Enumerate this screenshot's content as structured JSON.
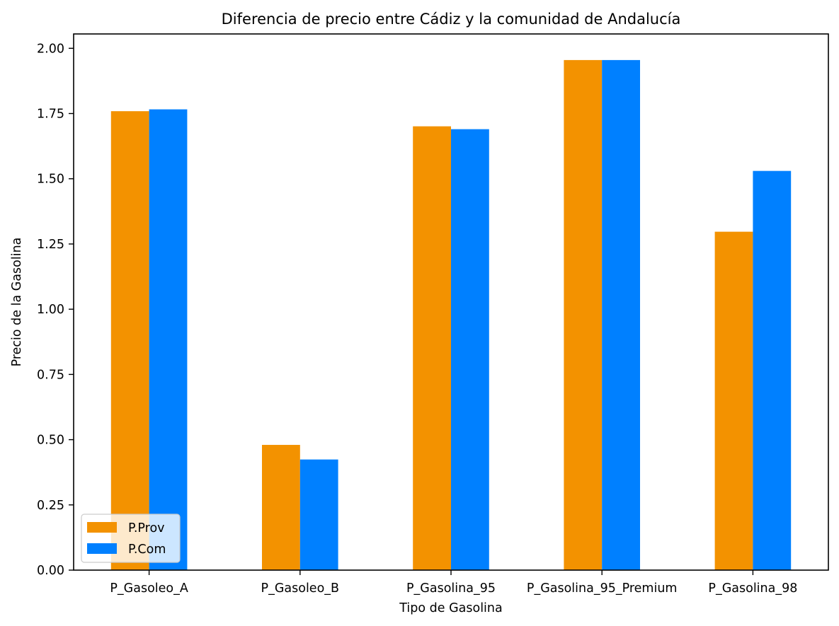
{
  "chart_data": {
    "type": "bar",
    "title": "Diferencia de precio entre Cádiz y la comunidad de Andalucía",
    "xlabel": "Tipo de Gasolina",
    "ylabel": "Precio de la Gasolina",
    "categories": [
      "P_Gasoleo_A",
      "P_Gasoleo_B",
      "P_Gasolina_95",
      "P_Gasolina_95_Premium",
      "P_Gasolina_98"
    ],
    "series": [
      {
        "name": "P.Prov",
        "color": "#f39200",
        "values": [
          1.759,
          0.48,
          1.701,
          1.955,
          1.297
        ]
      },
      {
        "name": "P.Com",
        "color": "#0080ff",
        "values": [
          1.766,
          0.424,
          1.69,
          1.955,
          1.53
        ]
      }
    ],
    "ylim": [
      0,
      2.055
    ],
    "yticks": [
      "0.00",
      "0.25",
      "0.50",
      "0.75",
      "1.00",
      "1.25",
      "1.50",
      "1.75",
      "2.00"
    ],
    "grid": false,
    "legend_position": "lower-left"
  }
}
